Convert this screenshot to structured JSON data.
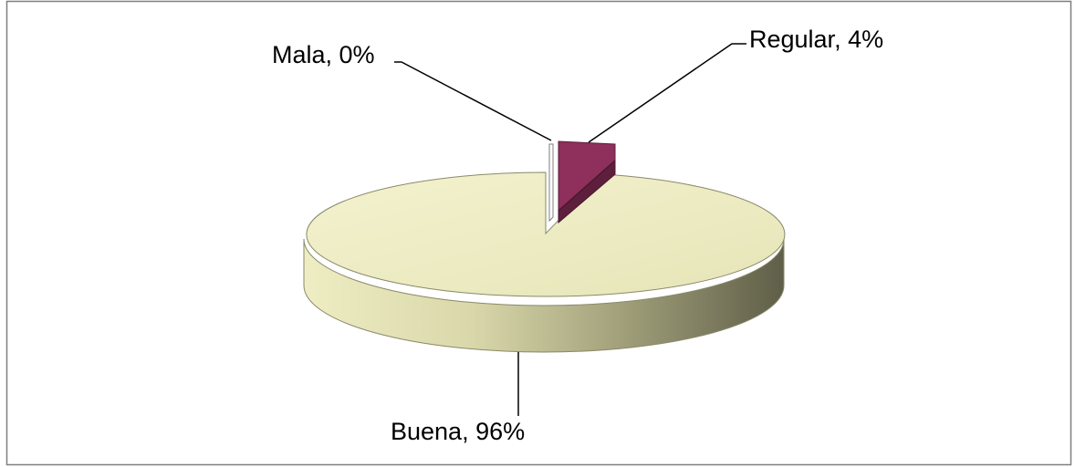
{
  "chart_data": {
    "type": "pie",
    "categories": [
      "Buena",
      "Regular",
      "Mala"
    ],
    "values": [
      96,
      4,
      0
    ],
    "labels": [
      "Buena, 96%",
      "Regular, 4%",
      "Mala, 0%"
    ],
    "colors": {
      "Buena": "#EEEDC3",
      "Regular": "#8E2F5C",
      "Mala": "#FFFFFF"
    },
    "title": "",
    "legend": "none",
    "view": "3d"
  }
}
